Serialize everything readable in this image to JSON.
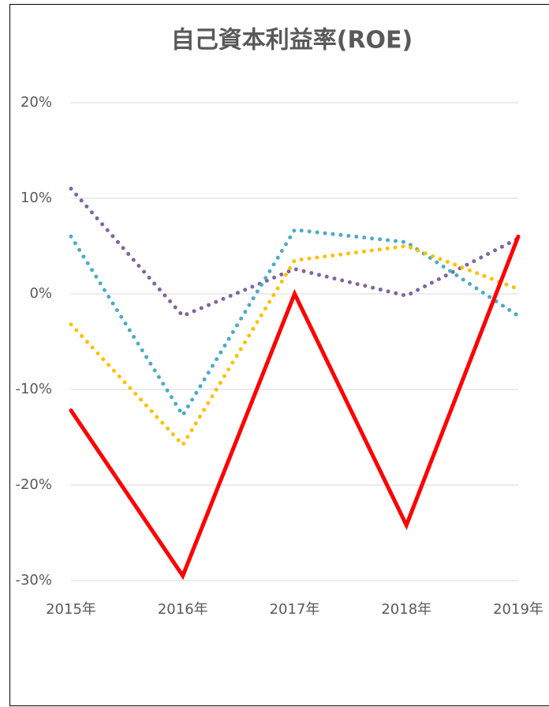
{
  "chart_data": {
    "type": "line",
    "title": "自己資本利益率(ROE)",
    "categories": [
      "2015年",
      "2016年",
      "2017年",
      "2018年",
      "2019年"
    ],
    "series": [
      {
        "color": "#8064a2",
        "style": "dotted",
        "values": [
          11,
          -2.3,
          2.6,
          -0.2,
          5.8
        ]
      },
      {
        "color": "#4bacc6",
        "style": "dotted",
        "values": [
          6,
          -12.7,
          6.7,
          5.4,
          -2.3
        ]
      },
      {
        "color": "#ffc000",
        "style": "dotted",
        "values": [
          -3.2,
          -15.8,
          3.5,
          5,
          0.5
        ]
      },
      {
        "color": "#ff0000",
        "style": "solid",
        "values": [
          -12.2,
          -29.5,
          0,
          -24.2,
          6
        ]
      }
    ],
    "ylim": [
      -30,
      20
    ],
    "yticks": [
      {
        "value": -30,
        "label": "-30%"
      },
      {
        "value": -20,
        "label": "-20%"
      },
      {
        "value": -10,
        "label": "-10%"
      },
      {
        "value": 0,
        "label": "0%"
      },
      {
        "value": 10,
        "label": "10%"
      },
      {
        "value": 20,
        "label": "20%"
      }
    ],
    "grid": true
  }
}
